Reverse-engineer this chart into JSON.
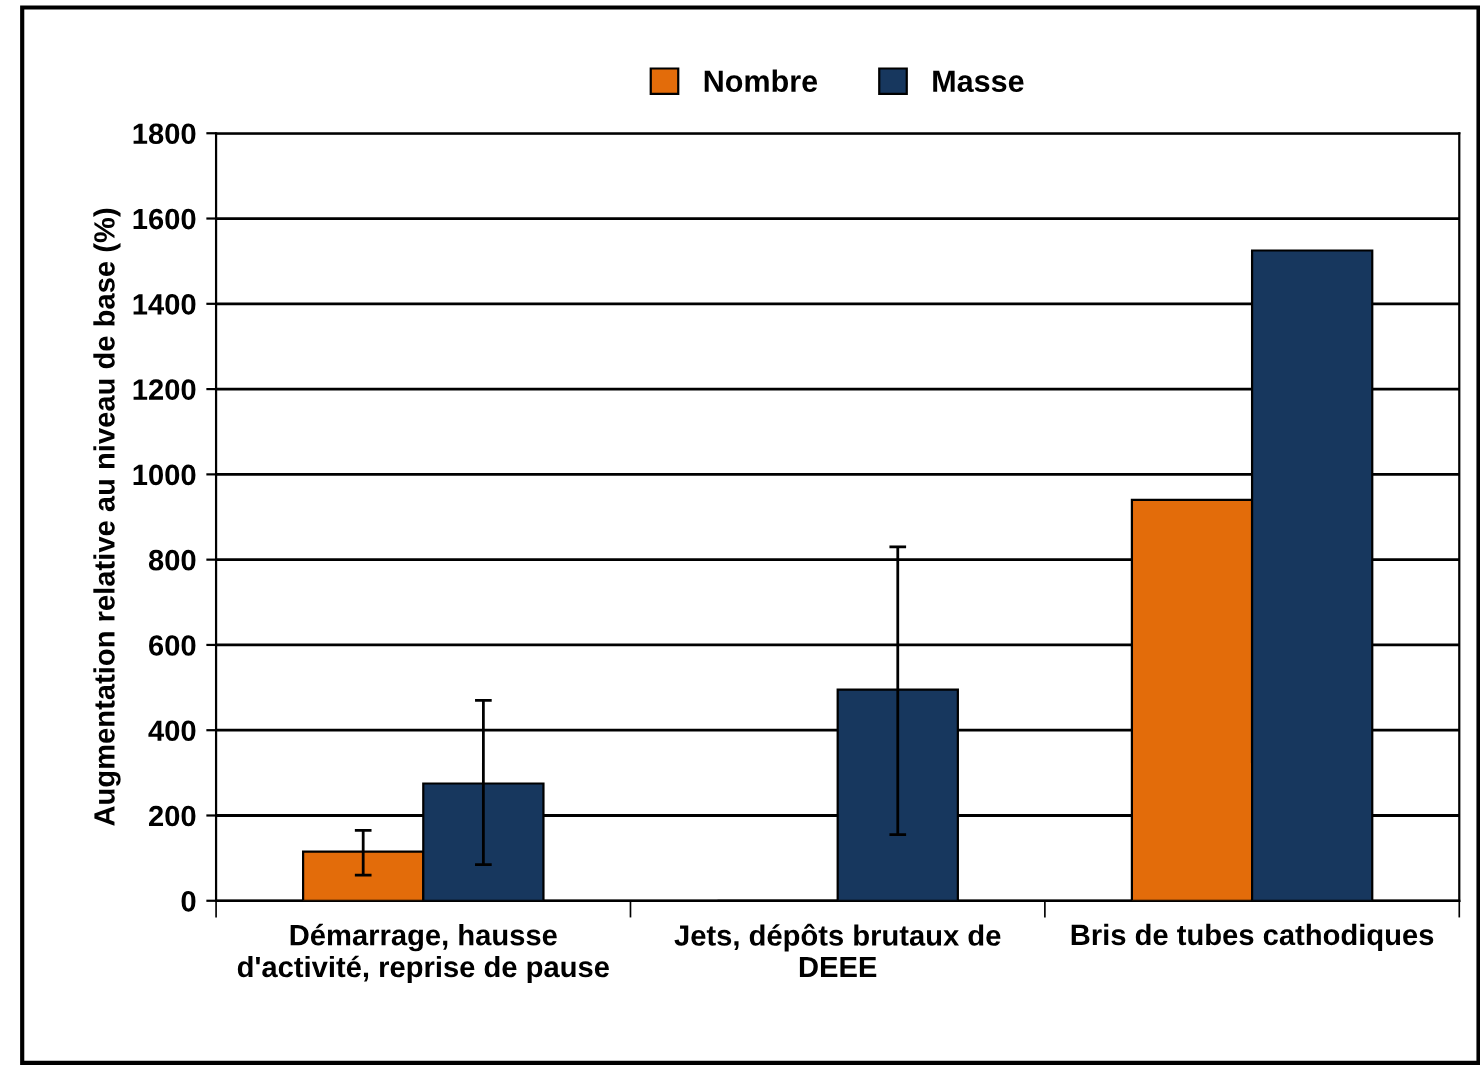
{
  "chart_data": {
    "type": "bar",
    "ylabel": "Augmentation relative au niveau de base (%)",
    "categories": [
      "Démarrage, hausse d'activité, reprise de pause",
      "Jets, dépôts brutaux de DEEE",
      "Bris de tubes cathodiques"
    ],
    "series": [
      {
        "name": "Nombre",
        "color": "#e36c0a",
        "values": [
          115,
          0,
          940
        ],
        "errors": [
          [
            60,
            165
          ],
          null,
          null
        ]
      },
      {
        "name": "Masse",
        "color": "#17375e",
        "values": [
          275,
          495,
          1525
        ],
        "errors": [
          [
            85,
            470
          ],
          [
            155,
            830
          ],
          null
        ]
      }
    ],
    "ylim": [
      0,
      1800
    ],
    "yticks": [
      0,
      200,
      400,
      600,
      800,
      1000,
      1200,
      1400,
      1600,
      1800
    ],
    "grid": "y",
    "legend": "top"
  }
}
